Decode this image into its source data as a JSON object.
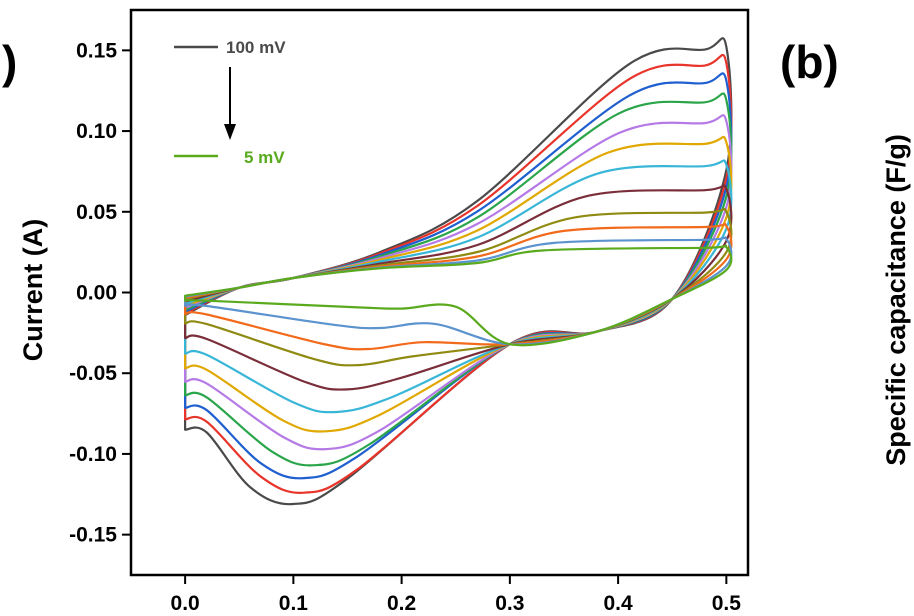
{
  "panel_labels": {
    "left_fragment": ")",
    "right": "(b)"
  },
  "right_axis_title": "Specific capacitance (F/g)",
  "legend": {
    "top_label": "100 mV",
    "top_color": "#4a4a4a",
    "bottom_label": "5 mV",
    "bottom_color": "#5aaa1e"
  },
  "chart_data": {
    "type": "line",
    "title": "",
    "xlabel": "",
    "ylabel": "Current (A)",
    "xlim": [
      -0.05,
      0.52
    ],
    "ylim": [
      -0.175,
      0.175
    ],
    "xticks": [
      0.0,
      0.1,
      0.2,
      0.3,
      0.4,
      0.5
    ],
    "xtick_labels": [
      "0.0",
      "0.1",
      "0.2",
      "0.3",
      "0.4",
      "0.5"
    ],
    "yticks": [
      -0.15,
      -0.1,
      -0.05,
      0.0,
      0.05,
      0.1,
      0.15
    ],
    "ytick_labels": [
      "-0.15",
      "-0.10",
      "-0.05",
      "0.00",
      "0.05",
      "0.10",
      "0.15"
    ],
    "legend_placement": "top-left",
    "grid": false,
    "series": [
      {
        "scan_rate_rank": 1,
        "color": "#4a4a4a",
        "i_max": 0.152,
        "i_min": -0.131,
        "e_ox": 0.41,
        "e_red": 0.1
      },
      {
        "scan_rate_rank": 2,
        "color": "#e8342a",
        "i_max": 0.142,
        "i_min": -0.124,
        "e_ox": 0.41,
        "e_red": 0.11
      },
      {
        "scan_rate_rank": 3,
        "color": "#1f5fcf",
        "i_max": 0.131,
        "i_min": -0.115,
        "e_ox": 0.41,
        "e_red": 0.11
      },
      {
        "scan_rate_rank": 4,
        "color": "#2aa54a",
        "i_max": 0.119,
        "i_min": -0.107,
        "e_ox": 0.4,
        "e_red": 0.12
      },
      {
        "scan_rate_rank": 5,
        "color": "#b57ae6",
        "i_max": 0.106,
        "i_min": -0.097,
        "e_ox": 0.4,
        "e_red": 0.13
      },
      {
        "scan_rate_rank": 6,
        "color": "#e0a800",
        "i_max": 0.093,
        "i_min": -0.086,
        "e_ox": 0.39,
        "e_red": 0.13
      },
      {
        "scan_rate_rank": 7,
        "color": "#38b6d8",
        "i_max": 0.079,
        "i_min": -0.074,
        "e_ox": 0.38,
        "e_red": 0.14
      },
      {
        "scan_rate_rank": 8,
        "color": "#7a2e3a",
        "i_max": 0.064,
        "i_min": -0.06,
        "e_ox": 0.37,
        "e_red": 0.15
      },
      {
        "scan_rate_rank": 9,
        "color": "#8f8a12",
        "i_max": 0.05,
        "i_min": -0.045,
        "e_ox": 0.36,
        "e_red": 0.16
      },
      {
        "scan_rate_rank": 10,
        "color": "#f26a1b",
        "i_max": 0.041,
        "i_min": -0.035,
        "e_ox": 0.35,
        "e_red": 0.17
      },
      {
        "scan_rate_rank": 11,
        "color": "#5b93cf",
        "i_max": 0.033,
        "i_min": -0.022,
        "e_ox": 0.34,
        "e_red": 0.18
      },
      {
        "scan_rate_rank": 12,
        "color": "#5aaa1e",
        "i_max": 0.028,
        "i_min": -0.01,
        "e_ox": 0.33,
        "e_red": 0.2
      }
    ]
  }
}
